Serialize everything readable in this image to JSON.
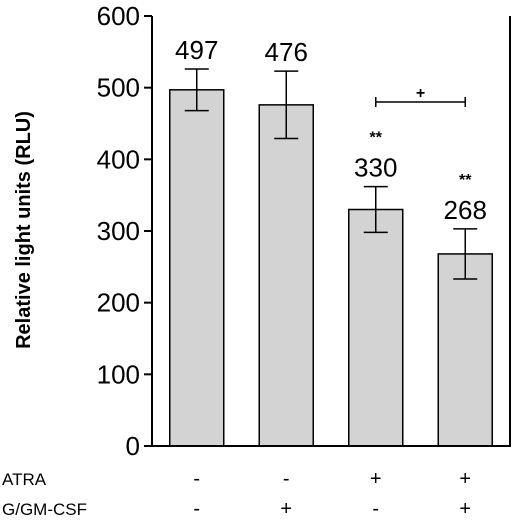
{
  "chart_data": {
    "type": "bar",
    "title": "",
    "ylabel": "Relative light units (RLU)",
    "ylim": [
      0,
      600
    ],
    "yticks": [
      0,
      100,
      200,
      300,
      400,
      500,
      600
    ],
    "bars": [
      {
        "value": 497,
        "label": "497",
        "err": 29,
        "sig": ""
      },
      {
        "value": 476,
        "label": "476",
        "err": 47,
        "sig": ""
      },
      {
        "value": 330,
        "label": "330",
        "err": 32,
        "sig": "**"
      },
      {
        "value": 268,
        "label": "268",
        "err": 35,
        "sig": "**"
      }
    ],
    "comparison": {
      "from": 2,
      "to": 3,
      "symbol": "+",
      "value": 480
    },
    "treatments": [
      {
        "name": "ATRA",
        "signs": [
          "-",
          "-",
          "+",
          "+"
        ]
      },
      {
        "name": "G/GM-CSF",
        "signs": [
          "-",
          "+",
          "-",
          "+"
        ]
      }
    ],
    "colors": {
      "bar_fill": "#d3d3d3",
      "stroke": "#000000"
    }
  }
}
